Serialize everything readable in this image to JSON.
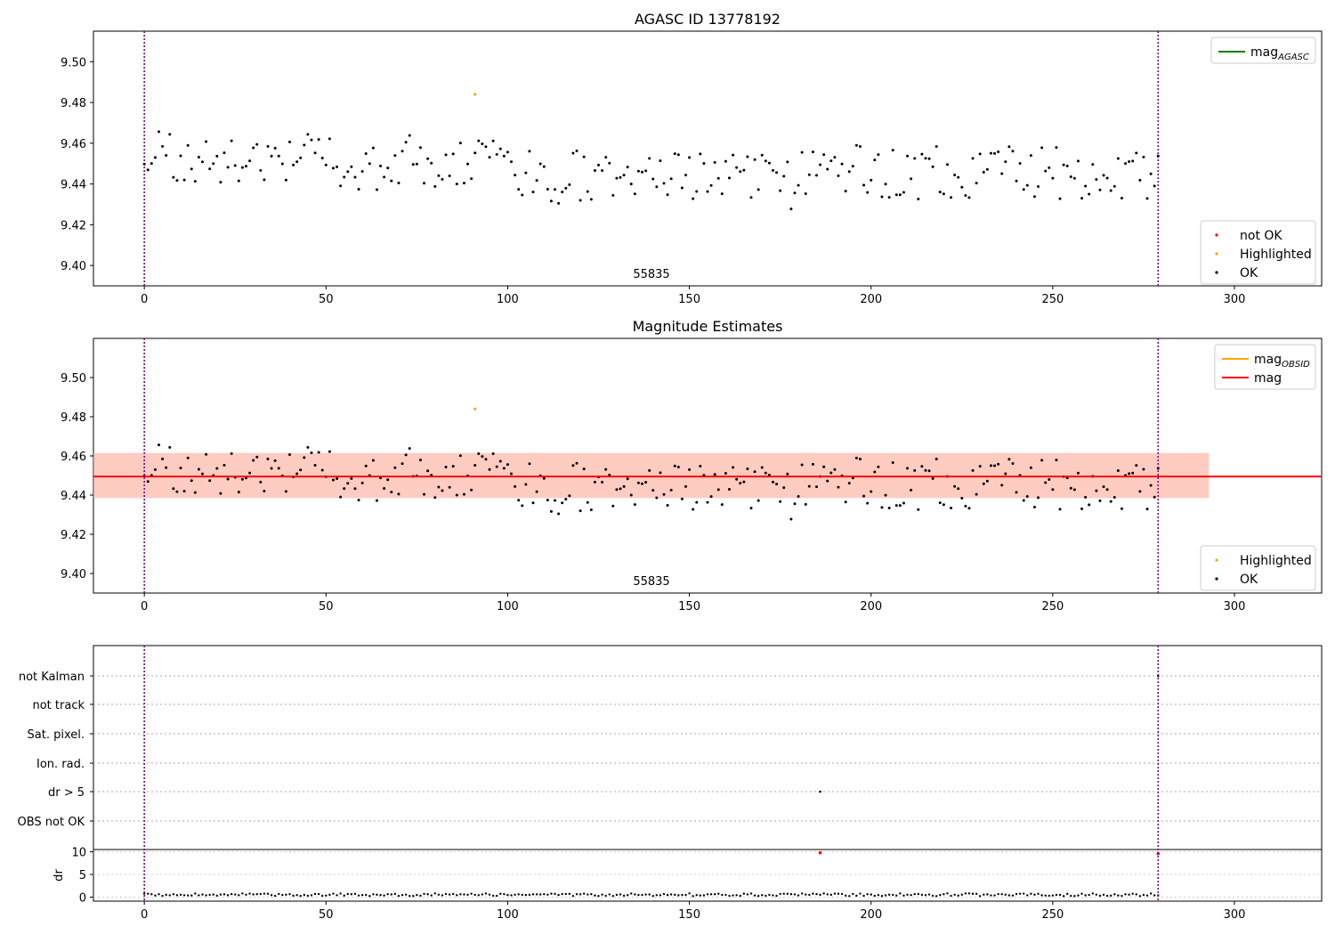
{
  "figure": {
    "title_top": "AGASC ID 13778192",
    "title_middle": "Magnitude Estimates",
    "obsid_label": "55835"
  },
  "colors": {
    "ok": "#000000",
    "highlighted": "#ffa500",
    "not_ok": "#ff0000",
    "mag_agasc": "#008000",
    "mag_obsid": "#ffa500",
    "mag": "#ff0000",
    "band_outer": "#ffc0cb",
    "band_inner": "#ffa07a",
    "obs_boundary": "#800080"
  },
  "legends": {
    "top_upper": [
      {
        "key": "mag_agasc",
        "label": "mag",
        "sub": "AGASC"
      }
    ],
    "top_lower": [
      {
        "key": "not_ok",
        "label": "not OK"
      },
      {
        "key": "highlighted",
        "label": "Highlighted"
      },
      {
        "key": "ok",
        "label": "OK"
      }
    ],
    "mid_upper": [
      {
        "key": "mag_obsid",
        "label": "mag",
        "sub": "OBSID"
      },
      {
        "key": "mag",
        "label": "mag",
        "sub": ""
      }
    ],
    "mid_lower": [
      {
        "key": "highlighted",
        "label": "Highlighted"
      },
      {
        "key": "ok",
        "label": "OK"
      }
    ]
  },
  "chart_data": [
    {
      "type": "scatter",
      "title": "AGASC ID 13778192",
      "xlim": [
        -14,
        324
      ],
      "ylim": [
        9.39,
        9.515
      ],
      "xticks": [
        "0",
        "50",
        "100",
        "150",
        "200",
        "250",
        "300"
      ],
      "yticks": [
        "9.40",
        "9.42",
        "9.44",
        "9.46",
        "9.48",
        "9.50"
      ],
      "obs_boundaries": [
        0,
        279
      ],
      "series": [
        {
          "name": "OK",
          "x_start": 0,
          "x_end": 279,
          "y_mean": 9.449,
          "y_spread": 0.018,
          "count": 279
        },
        {
          "name": "Highlighted",
          "points": [
            [
              91,
              9.484
            ]
          ]
        }
      ],
      "annotation": "55835"
    },
    {
      "type": "scatter",
      "title": "Magnitude Estimates",
      "xlim": [
        -14,
        324
      ],
      "ylim": [
        9.39,
        9.52
      ],
      "xticks": [
        "0",
        "50",
        "100",
        "150",
        "200",
        "250",
        "300"
      ],
      "yticks": [
        "9.40",
        "9.42",
        "9.44",
        "9.46",
        "9.48",
        "9.50"
      ],
      "obs_boundaries": [
        0,
        279
      ],
      "mag": 9.4495,
      "band": [
        9.4385,
        9.4615
      ],
      "band_x": [
        -14,
        293
      ],
      "series": [
        {
          "name": "OK",
          "x_start": 0,
          "x_end": 279,
          "y_mean": 9.449,
          "y_spread": 0.018,
          "count": 279
        },
        {
          "name": "Highlighted",
          "points": [
            [
              91,
              9.484
            ]
          ]
        }
      ],
      "annotation": "55835"
    },
    {
      "type": "scatter",
      "xlim": [
        -14,
        324
      ],
      "xticks": [
        "0",
        "50",
        "100",
        "150",
        "200",
        "250",
        "300"
      ],
      "flag_rows": [
        "not Kalman",
        "not track",
        "Sat. pixel.",
        "Ion. rad.",
        "dr > 5",
        "OBS not OK"
      ],
      "flag_points": [
        {
          "row": "dr > 5",
          "x": 186
        },
        {
          "row": "not Kalman",
          "x": 279
        }
      ],
      "dr": {
        "ylabel": "dr",
        "yticks": [
          "0",
          "5",
          "10"
        ],
        "ylim": [
          -0.5,
          10.5
        ],
        "values_mean": 0.4,
        "count": 279,
        "outliers": [
          [
            186,
            9.8
          ],
          [
            279,
            9.6
          ]
        ]
      }
    }
  ]
}
